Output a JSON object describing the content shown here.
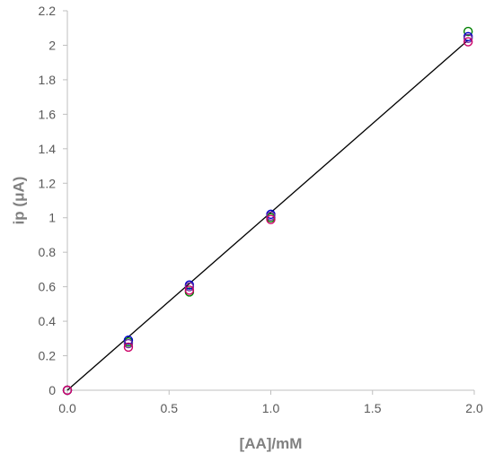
{
  "chart_data": {
    "type": "scatter",
    "title": "",
    "xlabel": "[AA]/mM",
    "ylabel": "ip (μA)",
    "xlim": [
      0,
      2.0
    ],
    "ylim": [
      0,
      2.2
    ],
    "x_ticks": [
      "0.0",
      "0.5",
      "1.0",
      "1.5",
      "2.0"
    ],
    "y_ticks": [
      "0",
      "0.2",
      "0.4",
      "0.6",
      "0.8",
      "1",
      "1.2",
      "1.4",
      "1.6",
      "1.8",
      "2",
      "2.2"
    ],
    "grid": false,
    "legend": "none",
    "marker": "open-circle",
    "series": [
      {
        "color": "#008000",
        "points": [
          [
            0,
            0
          ],
          [
            0.3,
            0.28
          ],
          [
            0.6,
            0.57
          ],
          [
            1.0,
            1.0
          ],
          [
            1.97,
            2.08
          ]
        ]
      },
      {
        "color": "#0000cc",
        "points": [
          [
            0,
            0
          ],
          [
            0.3,
            0.29
          ],
          [
            0.6,
            0.61
          ],
          [
            1.0,
            1.02
          ],
          [
            1.97,
            2.05
          ]
        ]
      },
      {
        "color": "#7030a0",
        "points": [
          [
            0,
            0
          ],
          [
            0.3,
            0.27
          ],
          [
            0.6,
            0.6
          ],
          [
            1.0,
            1.01
          ],
          [
            1.97,
            2.04
          ]
        ]
      },
      {
        "color": "#cc0066",
        "points": [
          [
            0,
            0
          ],
          [
            0.3,
            0.25
          ],
          [
            0.6,
            0.58
          ],
          [
            1.0,
            0.99
          ],
          [
            1.97,
            2.02
          ]
        ]
      }
    ],
    "fit_line": {
      "color": "#000000",
      "points": [
        [
          0,
          0
        ],
        [
          1.97,
          2.03
        ]
      ]
    }
  }
}
